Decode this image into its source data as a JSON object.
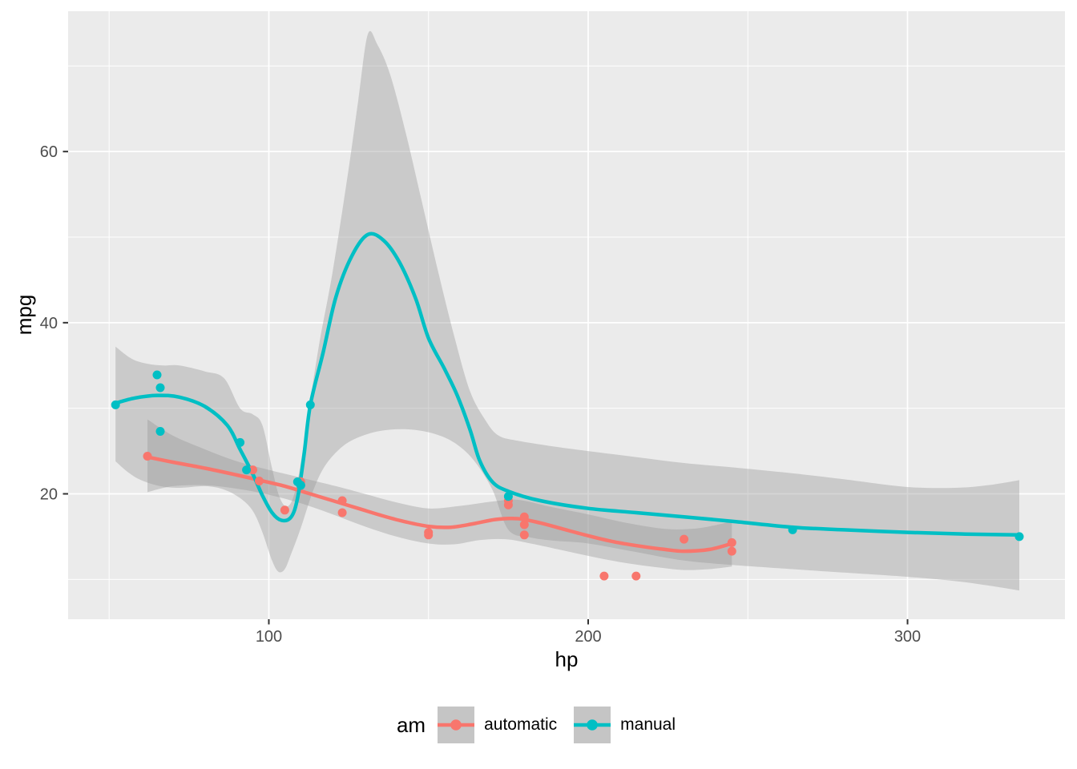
{
  "chart_data": {
    "type": "scatter",
    "title": "",
    "xlabel": "hp",
    "ylabel": "mpg",
    "panel_bg": "#EBEBEB",
    "grid_color": "#FFFFFF",
    "tick_color": "#333333",
    "tick_label_color": "#4D4D4D",
    "ribbon_color": "#999999",
    "ribbon_opacity": 0.4,
    "x_ticks": [
      100,
      200,
      300
    ],
    "y_ticks": [
      20,
      40,
      60
    ],
    "x_minor": [
      50,
      150,
      250
    ],
    "y_minor": [
      10,
      30,
      50,
      70
    ],
    "x_domain": [
      37.15,
      349.3
    ],
    "y_domain": [
      5.35,
      76.4
    ],
    "legend": {
      "title": "am",
      "position": "bottom",
      "key_fill": "#C5C5C5",
      "entries": [
        {
          "label": "automatic",
          "color": "#F8766D"
        },
        {
          "label": "manual",
          "color": "#00BFC4"
        }
      ]
    },
    "series": [
      {
        "name": "automatic",
        "color": "#F8766D",
        "points": [
          [
            110,
            21.4
          ],
          [
            175,
            18.7
          ],
          [
            105,
            18.1
          ],
          [
            245,
            14.3
          ],
          [
            62,
            24.4
          ],
          [
            95,
            22.8
          ],
          [
            123,
            19.2
          ],
          [
            123,
            17.8
          ],
          [
            180,
            16.4
          ],
          [
            180,
            17.3
          ],
          [
            180,
            15.2
          ],
          [
            205,
            10.4
          ],
          [
            215,
            10.4
          ],
          [
            230,
            14.7
          ],
          [
            97,
            21.5
          ],
          [
            150,
            15.5
          ],
          [
            150,
            15.2
          ],
          [
            245,
            13.3
          ],
          [
            175,
            19.2
          ]
        ],
        "smooth": [
          [
            62,
            24.3
          ],
          [
            70,
            23.7
          ],
          [
            80,
            23.0
          ],
          [
            90,
            22.2
          ],
          [
            97,
            21.6
          ],
          [
            105,
            20.9
          ],
          [
            112,
            20.1
          ],
          [
            120,
            19.2
          ],
          [
            128,
            18.3
          ],
          [
            135,
            17.5
          ],
          [
            142,
            16.8
          ],
          [
            150,
            16.2
          ],
          [
            157,
            16.1
          ],
          [
            164,
            16.5
          ],
          [
            171,
            17.0
          ],
          [
            178,
            17.1
          ],
          [
            185,
            16.6
          ],
          [
            192,
            15.9
          ],
          [
            200,
            15.1
          ],
          [
            208,
            14.4
          ],
          [
            216,
            13.9
          ],
          [
            224,
            13.5
          ],
          [
            230,
            13.3
          ],
          [
            238,
            13.5
          ],
          [
            245,
            14.2
          ]
        ],
        "ribbon_hi": [
          [
            62,
            28.7
          ],
          [
            70,
            26.8
          ],
          [
            80,
            25.2
          ],
          [
            90,
            23.8
          ],
          [
            100,
            22.8
          ],
          [
            110,
            21.9
          ],
          [
            121,
            20.9
          ],
          [
            130,
            20.0
          ],
          [
            140,
            19.0
          ],
          [
            150,
            18.3
          ],
          [
            160,
            18.6
          ],
          [
            170,
            19.1
          ],
          [
            178,
            19.3
          ],
          [
            188,
            18.5
          ],
          [
            200,
            17.6
          ],
          [
            212,
            16.6
          ],
          [
            224,
            15.9
          ],
          [
            232,
            15.9
          ],
          [
            238,
            16.2
          ],
          [
            245,
            16.8
          ]
        ],
        "ribbon_lo": [
          [
            62,
            20.2
          ],
          [
            70,
            20.9
          ],
          [
            80,
            21.0
          ],
          [
            90,
            20.6
          ],
          [
            100,
            19.9
          ],
          [
            110,
            18.9
          ],
          [
            120,
            17.6
          ],
          [
            130,
            16.2
          ],
          [
            140,
            15.0
          ],
          [
            150,
            14.2
          ],
          [
            158,
            14.1
          ],
          [
            166,
            14.6
          ],
          [
            174,
            14.7
          ],
          [
            182,
            14.2
          ],
          [
            192,
            13.4
          ],
          [
            202,
            12.6
          ],
          [
            212,
            11.9
          ],
          [
            222,
            11.4
          ],
          [
            230,
            11.1
          ],
          [
            238,
            11.2
          ],
          [
            245,
            11.5
          ]
        ]
      },
      {
        "name": "manual",
        "color": "#00BFC4",
        "points": [
          [
            110,
            21
          ],
          [
            110,
            21
          ],
          [
            93,
            22.8
          ],
          [
            66,
            32.4
          ],
          [
            52,
            30.4
          ],
          [
            65,
            33.9
          ],
          [
            66,
            27.3
          ],
          [
            91,
            26
          ],
          [
            113,
            30.4
          ],
          [
            264,
            15.8
          ],
          [
            175,
            19.7
          ],
          [
            335,
            15
          ],
          [
            109,
            21.4
          ]
        ],
        "smooth": [
          [
            52,
            30.6
          ],
          [
            58,
            31.2
          ],
          [
            65,
            31.5
          ],
          [
            72,
            31.3
          ],
          [
            80,
            30.2
          ],
          [
            87,
            28.0
          ],
          [
            91,
            25.2
          ],
          [
            95,
            22.3
          ],
          [
            98,
            19.8
          ],
          [
            101,
            17.8
          ],
          [
            104,
            16.9
          ],
          [
            107,
            17.3
          ],
          [
            109,
            19.5
          ],
          [
            111,
            24.5
          ],
          [
            113,
            30.4
          ],
          [
            117,
            36.5
          ],
          [
            121,
            43.0
          ],
          [
            126,
            47.8
          ],
          [
            131,
            50.3
          ],
          [
            136,
            49.6
          ],
          [
            141,
            47.0
          ],
          [
            146,
            42.8
          ],
          [
            150,
            38.2
          ],
          [
            155,
            34.6
          ],
          [
            159,
            31.5
          ],
          [
            163,
            27.5
          ],
          [
            166,
            23.9
          ],
          [
            170,
            21.4
          ],
          [
            175,
            20.3
          ],
          [
            185,
            19.2
          ],
          [
            200,
            18.3
          ],
          [
            215,
            17.8
          ],
          [
            230,
            17.3
          ],
          [
            245,
            16.8
          ],
          [
            264,
            16.1
          ],
          [
            280,
            15.8
          ],
          [
            300,
            15.5
          ],
          [
            318,
            15.3
          ],
          [
            335,
            15.2
          ]
        ],
        "ribbon_hi": [
          [
            52,
            37.2
          ],
          [
            57,
            35.8
          ],
          [
            62,
            35.2
          ],
          [
            67,
            35.0
          ],
          [
            72,
            35.0
          ],
          [
            80,
            34.3
          ],
          [
            86,
            33.5
          ],
          [
            91,
            30.0
          ],
          [
            95,
            29.3
          ],
          [
            98,
            28.0
          ],
          [
            101,
            23.0
          ],
          [
            103,
            20.0
          ],
          [
            105,
            18.6
          ],
          [
            107,
            19.0
          ],
          [
            109,
            21.5
          ],
          [
            111,
            26.0
          ],
          [
            113,
            31.0
          ],
          [
            116,
            38.0
          ],
          [
            120,
            46.0
          ],
          [
            125,
            58.0
          ],
          [
            128,
            66.0
          ],
          [
            131,
            73.7
          ],
          [
            134,
            72.5
          ],
          [
            138,
            69.0
          ],
          [
            143,
            62.0
          ],
          [
            148,
            54.0
          ],
          [
            153,
            46.0
          ],
          [
            158,
            38.5
          ],
          [
            163,
            32.0
          ],
          [
            168,
            28.5
          ],
          [
            172,
            26.8
          ],
          [
            178,
            26.2
          ],
          [
            188,
            25.6
          ],
          [
            200,
            25.0
          ],
          [
            215,
            24.3
          ],
          [
            230,
            23.6
          ],
          [
            245,
            23.1
          ],
          [
            264,
            22.4
          ],
          [
            280,
            21.7
          ],
          [
            300,
            20.8
          ],
          [
            315,
            20.7
          ],
          [
            325,
            21.0
          ],
          [
            335,
            21.6
          ]
        ],
        "ribbon_lo": [
          [
            52,
            23.8
          ],
          [
            56,
            22.5
          ],
          [
            60,
            21.6
          ],
          [
            66,
            20.9
          ],
          [
            72,
            20.7
          ],
          [
            80,
            20.9
          ],
          [
            86,
            20.5
          ],
          [
            91,
            19.5
          ],
          [
            95,
            18.0
          ],
          [
            98,
            15.5
          ],
          [
            101,
            12.2
          ],
          [
            103,
            10.9
          ],
          [
            105,
            11.2
          ],
          [
            107,
            13.0
          ],
          [
            110,
            16.0
          ],
          [
            114,
            20.5
          ],
          [
            118,
            23.5
          ],
          [
            124,
            25.8
          ],
          [
            131,
            27.0
          ],
          [
            138,
            27.5
          ],
          [
            145,
            27.5
          ],
          [
            152,
            27.0
          ],
          [
            158,
            26.0
          ],
          [
            164,
            24.0
          ],
          [
            170,
            20.5
          ],
          [
            175,
            15.8
          ],
          [
            182,
            14.9
          ],
          [
            190,
            14.5
          ],
          [
            200,
            14.2
          ],
          [
            215,
            13.2
          ],
          [
            230,
            12.2
          ],
          [
            245,
            11.7
          ],
          [
            264,
            11.2
          ],
          [
            280,
            10.8
          ],
          [
            300,
            10.3
          ],
          [
            315,
            9.8
          ],
          [
            325,
            9.3
          ],
          [
            335,
            8.7
          ]
        ]
      }
    ]
  }
}
